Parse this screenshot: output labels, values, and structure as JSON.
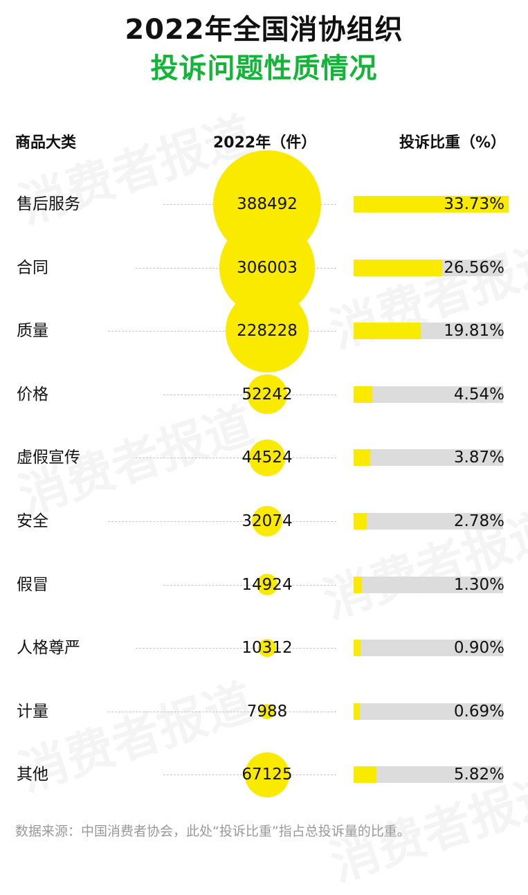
{
  "title_line1": "2022年全国消协组织",
  "title_line2": "投诉问题性质情况",
  "headers": {
    "category": "商品大类",
    "count": "2022年（件）",
    "share": "投诉比重（%）"
  },
  "watermark": "消费者报道",
  "colors": {
    "accent_green": "#12b537",
    "bubble_yellow": "#f9ea00",
    "track_grey": "#dcdcdc"
  },
  "chart_data": {
    "type": "table",
    "columns": [
      "商品大类",
      "2022年（件）",
      "投诉比重（%）"
    ],
    "rows": [
      {
        "category": "售后服务",
        "count": 388492,
        "count_label": "388492",
        "share": 33.73,
        "share_label": "33.73%"
      },
      {
        "category": "合同",
        "count": 306003,
        "count_label": "306003",
        "share": 26.56,
        "share_label": "26.56%"
      },
      {
        "category": "质量",
        "count": 228228,
        "count_label": "228228",
        "share": 19.81,
        "share_label": "19.81%"
      },
      {
        "category": "价格",
        "count": 52242,
        "count_label": "52242",
        "share": 4.54,
        "share_label": "4.54%"
      },
      {
        "category": "虚假宣传",
        "count": 44524,
        "count_label": "44524",
        "share": 3.87,
        "share_label": "3.87%"
      },
      {
        "category": "安全",
        "count": 32074,
        "count_label": "32074",
        "share": 2.78,
        "share_label": "2.78%"
      },
      {
        "category": "假冒",
        "count": 14924,
        "count_label": "14924",
        "share": 1.3,
        "share_label": "1.30%"
      },
      {
        "category": "人格尊严",
        "count": 10312,
        "count_label": "10312",
        "share": 0.9,
        "share_label": "0.90%"
      },
      {
        "category": "计量",
        "count": 7988,
        "count_label": "7988",
        "share": 0.69,
        "share_label": "0.69%"
      },
      {
        "category": "其他",
        "count": 67125,
        "count_label": "67125",
        "share": 5.82,
        "share_label": "5.82%"
      }
    ]
  },
  "source_note": "数据来源：中国消费者协会，此处“投诉比重”指占总投诉量的比重。"
}
